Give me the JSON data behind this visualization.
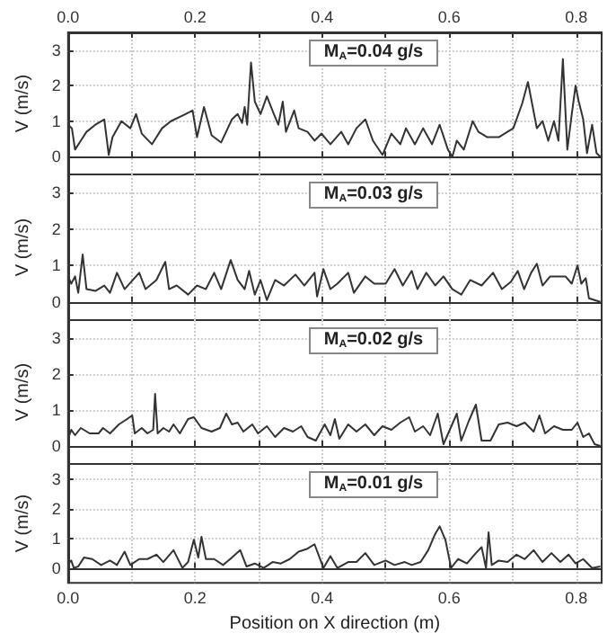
{
  "chart_data": [
    {
      "type": "line",
      "title": "M$_{A}$=0.04 g/s",
      "ylabel": "V (m/s)",
      "tick_labels": "y",
      "grid": true,
      "xlim": [
        0,
        0.84
      ],
      "xticks": [
        {
          "value": 0,
          "label": null
        },
        {
          "value": 0.1,
          "label": null
        },
        {
          "value": 0.2,
          "label": null
        },
        {
          "value": 0.3,
          "label": null
        },
        {
          "value": 0.4,
          "label": null
        },
        {
          "value": 0.5,
          "label": null
        },
        {
          "value": 0.6,
          "label": null
        },
        {
          "value": 0.7,
          "label": null
        },
        {
          "value": 0.8,
          "label": null
        }
      ],
      "x2lim": [
        0,
        0.84
      ],
      "x2ticks": [
        {
          "value": 0,
          "label": "0.0"
        },
        {
          "value": 0.1,
          "label": null
        },
        {
          "value": 0.2,
          "label": "0.2"
        },
        {
          "value": 0.3,
          "label": null
        },
        {
          "value": 0.4,
          "label": "0.4"
        },
        {
          "value": 0.5,
          "label": null
        },
        {
          "value": 0.6,
          "label": "0.6"
        },
        {
          "value": 0.7,
          "label": null
        },
        {
          "value": 0.8,
          "label": "0.8"
        }
      ],
      "ylim": [
        -0.5,
        3.5
      ],
      "yticks": [
        0,
        1,
        2,
        3
      ],
      "x": [
        0,
        0.006,
        0.011,
        0.02,
        0.029,
        0.043,
        0.057,
        0.064,
        0.07,
        0.084,
        0.098,
        0.107,
        0.116,
        0.132,
        0.148,
        0.162,
        0.185,
        0.196,
        0.203,
        0.214,
        0.226,
        0.241,
        0.258,
        0.267,
        0.274,
        0.278,
        0.282,
        0.288,
        0.294,
        0.303,
        0.313,
        0.324,
        0.331,
        0.338,
        0.343,
        0.356,
        0.363,
        0.377,
        0.388,
        0.399,
        0.413,
        0.43,
        0.441,
        0.454,
        0.468,
        0.48,
        0.495,
        0.509,
        0.523,
        0.532,
        0.546,
        0.559,
        0.573,
        0.585,
        0.598,
        0.605,
        0.612,
        0.623,
        0.637,
        0.646,
        0.66,
        0.678,
        0.701,
        0.715,
        0.724,
        0.731,
        0.738,
        0.747,
        0.756,
        0.765,
        0.772,
        0.779,
        0.786,
        0.793,
        0.799,
        0.804,
        0.811,
        0.817,
        0.825,
        0.832,
        0.838
      ],
      "series": [
        {
          "color": "#333333",
          "values": [
            0.9,
            0.8,
            0.2,
            0.45,
            0.7,
            0.9,
            1.05,
            0.05,
            0.55,
            1.0,
            0.8,
            1.2,
            0.65,
            0.35,
            0.8,
            1.0,
            1.2,
            1.3,
            0.55,
            1.4,
            0.6,
            0.4,
            1.05,
            1.2,
            0.95,
            1.4,
            0.9,
            2.65,
            1.55,
            1.2,
            1.7,
            1.2,
            0.9,
            1.55,
            0.7,
            1.3,
            0.8,
            0.7,
            0.45,
            0.65,
            0.35,
            0.7,
            0.35,
            0.8,
            1.05,
            0.45,
            0.05,
            0.65,
            0.35,
            0.8,
            0.35,
            0.8,
            0.35,
            0.9,
            0.2,
            0,
            0.45,
            0.2,
            1.0,
            0.7,
            0.55,
            0.55,
            0.8,
            1.5,
            2.1,
            1.45,
            0.8,
            1.0,
            0.45,
            1.0,
            0.45,
            2.75,
            0.2,
            1.2,
            2.0,
            1.55,
            1.05,
            0.1,
            0.9,
            0.1,
            0
          ]
        }
      ]
    },
    {
      "type": "line",
      "title": "M$_{A}$=0.03 g/s",
      "ylabel": "V (m/s)",
      "tick_labels": "y",
      "grid": true,
      "xlim": [
        0,
        0.84
      ],
      "xticks": [
        {
          "value": 0,
          "label": null
        },
        {
          "value": 0.1,
          "label": null
        },
        {
          "value": 0.2,
          "label": null
        },
        {
          "value": 0.3,
          "label": null
        },
        {
          "value": 0.4,
          "label": null
        },
        {
          "value": 0.5,
          "label": null
        },
        {
          "value": 0.6,
          "label": null
        },
        {
          "value": 0.7,
          "label": null
        },
        {
          "value": 0.8,
          "label": null
        }
      ],
      "ylim": [
        -0.5,
        3.5
      ],
      "yticks": [
        0,
        1,
        2,
        3
      ],
      "x": [
        0,
        0.005,
        0.011,
        0.016,
        0.023,
        0.029,
        0.043,
        0.057,
        0.066,
        0.077,
        0.089,
        0.112,
        0.122,
        0.139,
        0.153,
        0.159,
        0.171,
        0.189,
        0.203,
        0.217,
        0.23,
        0.241,
        0.256,
        0.267,
        0.278,
        0.285,
        0.294,
        0.303,
        0.313,
        0.326,
        0.34,
        0.358,
        0.372,
        0.388,
        0.392,
        0.402,
        0.413,
        0.424,
        0.441,
        0.45,
        0.468,
        0.482,
        0.5,
        0.514,
        0.527,
        0.541,
        0.55,
        0.564,
        0.578,
        0.591,
        0.605,
        0.619,
        0.633,
        0.651,
        0.669,
        0.683,
        0.697,
        0.708,
        0.718,
        0.729,
        0.738,
        0.747,
        0.759,
        0.77,
        0.783,
        0.793,
        0.802,
        0.808,
        0.815,
        0.82,
        0.829,
        0.838
      ],
      "series": [
        {
          "color": "#333333",
          "values": [
            0.7,
            0.5,
            0.7,
            0.25,
            1.3,
            0.35,
            0.3,
            0.45,
            0.25,
            0.8,
            0.35,
            0.8,
            0.35,
            0.6,
            1.1,
            0.35,
            0.45,
            0.2,
            0.45,
            0.35,
            0.8,
            0.35,
            1.15,
            0.6,
            0.35,
            0.85,
            0.2,
            0.6,
            0.05,
            0.6,
            0.45,
            0.75,
            0.45,
            0.8,
            0.15,
            0.9,
            0.35,
            0.5,
            0.8,
            0.25,
            0.7,
            0.5,
            0.5,
            0.9,
            0.45,
            0.85,
            0.35,
            0.8,
            0.45,
            0.7,
            0.35,
            0.2,
            0.6,
            0.45,
            0.8,
            0.35,
            0.55,
            0.85,
            0.35,
            0.8,
            1.05,
            0.45,
            0.7,
            0.7,
            0.7,
            0.5,
            1.0,
            0.5,
            0.65,
            0.1,
            0.05,
            0
          ]
        }
      ]
    },
    {
      "type": "line",
      "title": "M$_{A}$=0.02 g/s",
      "ylabel": "V (m/s)",
      "tick_labels": "y",
      "grid": true,
      "xlim": [
        0,
        0.84
      ],
      "xticks": [
        {
          "value": 0,
          "label": null
        },
        {
          "value": 0.1,
          "label": null
        },
        {
          "value": 0.2,
          "label": null
        },
        {
          "value": 0.3,
          "label": null
        },
        {
          "value": 0.4,
          "label": null
        },
        {
          "value": 0.5,
          "label": null
        },
        {
          "value": 0.6,
          "label": null
        },
        {
          "value": 0.7,
          "label": null
        },
        {
          "value": 0.8,
          "label": null
        }
      ],
      "ylim": [
        -0.5,
        3.5
      ],
      "yticks": [
        0,
        1,
        2,
        3
      ],
      "x": [
        0,
        0.005,
        0.011,
        0.02,
        0.034,
        0.048,
        0.055,
        0.066,
        0.08,
        0.093,
        0.101,
        0.105,
        0.116,
        0.125,
        0.134,
        0.137,
        0.141,
        0.15,
        0.159,
        0.166,
        0.176,
        0.189,
        0.198,
        0.21,
        0.226,
        0.239,
        0.249,
        0.258,
        0.267,
        0.276,
        0.29,
        0.299,
        0.313,
        0.326,
        0.34,
        0.354,
        0.367,
        0.377,
        0.39,
        0.404,
        0.413,
        0.42,
        0.427,
        0.441,
        0.454,
        0.468,
        0.482,
        0.495,
        0.509,
        0.523,
        0.537,
        0.546,
        0.559,
        0.57,
        0.582,
        0.591,
        0.601,
        0.612,
        0.619,
        0.631,
        0.642,
        0.651,
        0.665,
        0.678,
        0.692,
        0.706,
        0.719,
        0.733,
        0.742,
        0.751,
        0.765,
        0.779,
        0.793,
        0.802,
        0.811,
        0.82,
        0.829,
        0.838
      ],
      "series": [
        {
          "color": "#333333",
          "values": [
            0.2,
            0.45,
            0.3,
            0.5,
            0.35,
            0.35,
            0.5,
            0.35,
            0.6,
            0.75,
            0.85,
            0.35,
            0.5,
            0.35,
            0.45,
            1.45,
            0.35,
            0.5,
            0.4,
            0.6,
            0.35,
            0.75,
            0.8,
            0.5,
            0.4,
            0.5,
            0.9,
            0.6,
            0.65,
            0.4,
            0.6,
            0.35,
            0.55,
            0.25,
            0.5,
            0.4,
            0.55,
            0.25,
            0.15,
            0.6,
            0.3,
            0.75,
            0.2,
            0.6,
            0.4,
            0.6,
            0.3,
            0.55,
            0.45,
            0.65,
            0.8,
            0.4,
            0.55,
            0.3,
            0.9,
            0.05,
            0.45,
            0.9,
            0.15,
            0.7,
            1.15,
            0.15,
            0.15,
            0.6,
            0.65,
            0.55,
            0.65,
            0.4,
            0.85,
            0.35,
            0.55,
            0.45,
            0.45,
            0.65,
            0.25,
            0.35,
            0.05,
            0
          ]
        }
      ]
    },
    {
      "type": "line",
      "title": "M$_{A}$=0.01 g/s",
      "xlabel": "Position on X direction (m)",
      "ylabel": "V (m/s)",
      "grid": true,
      "xlim": [
        0,
        0.84
      ],
      "xticks": [
        {
          "value": 0,
          "label": "0.0"
        },
        {
          "value": 0.1,
          "label": null
        },
        {
          "value": 0.2,
          "label": "0.2"
        },
        {
          "value": 0.3,
          "label": null
        },
        {
          "value": 0.4,
          "label": "0.4"
        },
        {
          "value": 0.5,
          "label": null
        },
        {
          "value": 0.6,
          "label": "0.6"
        },
        {
          "value": 0.7,
          "label": null
        },
        {
          "value": 0.8,
          "label": "0.8"
        }
      ],
      "ylim": [
        -0.5,
        3.5
      ],
      "yticks": [
        0,
        1,
        2,
        3
      ],
      "x": [
        0,
        0.005,
        0.009,
        0.016,
        0.025,
        0.038,
        0.052,
        0.066,
        0.077,
        0.089,
        0.098,
        0.112,
        0.125,
        0.139,
        0.15,
        0.166,
        0.18,
        0.189,
        0.198,
        0.205,
        0.21,
        0.217,
        0.23,
        0.244,
        0.258,
        0.271,
        0.281,
        0.294,
        0.308,
        0.322,
        0.335,
        0.349,
        0.363,
        0.377,
        0.388,
        0.395,
        0.402,
        0.413,
        0.424,
        0.441,
        0.454,
        0.468,
        0.482,
        0.5,
        0.514,
        0.53,
        0.541,
        0.555,
        0.567,
        0.578,
        0.585,
        0.594,
        0.603,
        0.614,
        0.628,
        0.642,
        0.651,
        0.658,
        0.662,
        0.667,
        0.678,
        0.692,
        0.706,
        0.719,
        0.733,
        0.747,
        0.761,
        0.775,
        0.788,
        0.799,
        0.811,
        0.825,
        0.838
      ],
      "series": [
        {
          "color": "#333333",
          "values": [
            0.15,
            0.25,
            0,
            0.05,
            0.35,
            0.3,
            0.1,
            0.25,
            0.1,
            0.55,
            0.1,
            0.3,
            0.3,
            0.45,
            0.2,
            0.6,
            0,
            0.2,
            0.95,
            0.35,
            1.05,
            0.3,
            0.3,
            0.1,
            0.35,
            0.6,
            0.05,
            0.15,
            0,
            0.2,
            0.15,
            0.3,
            0.55,
            0.65,
            0.8,
            0.4,
            0,
            0.4,
            0,
            0.2,
            0.2,
            0.5,
            0.1,
            0.25,
            0.1,
            0.2,
            0.1,
            0.2,
            0.6,
            1.15,
            1.4,
            0.95,
            0,
            0.3,
            0.15,
            0.5,
            0.7,
            0,
            1.2,
            0.1,
            0.25,
            0.2,
            0.45,
            0.3,
            0.6,
            0.2,
            0.5,
            0.2,
            0.45,
            0.15,
            0.3,
            0,
            0.05
          ]
        }
      ]
    }
  ]
}
